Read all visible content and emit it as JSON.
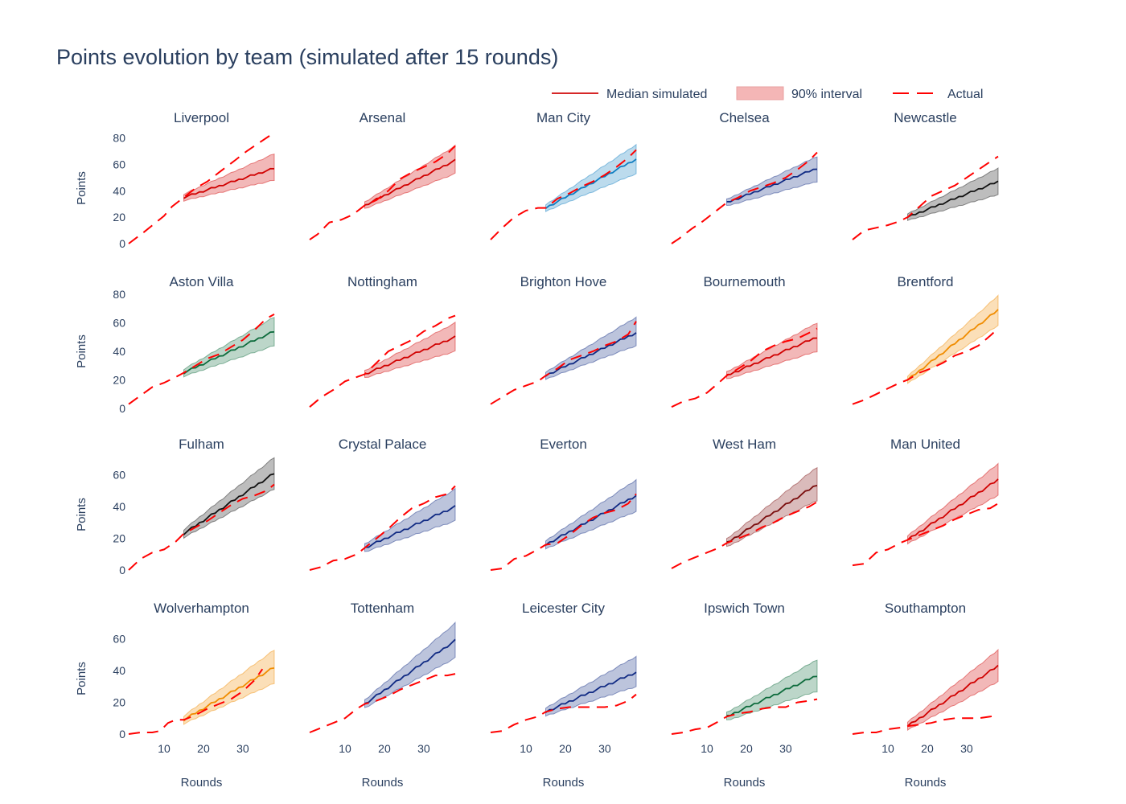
{
  "chart_data": {
    "type": "line",
    "title": "Points evolution by team (simulated after 15 rounds)",
    "xlabel": "Rounds",
    "ylabel": "Points",
    "xlim": [
      1,
      38
    ],
    "x_ticks": [
      10,
      20,
      30
    ],
    "ylim_rows": [
      [
        0,
        84
      ],
      [
        0,
        80
      ],
      [
        0,
        70
      ],
      [
        0,
        70
      ]
    ],
    "y_ticks_rows": [
      [
        0,
        20,
        40,
        60,
        80
      ],
      [
        0,
        20,
        40,
        60,
        80
      ],
      [
        0,
        20,
        40,
        60
      ],
      [
        0,
        20,
        40,
        60
      ]
    ],
    "simulation_start_round": 15,
    "legend": {
      "position": "top-right",
      "items": [
        {
          "label": "Median simulated",
          "style": "line",
          "color": "#d62728"
        },
        {
          "label": "90% interval",
          "style": "band",
          "color": "#f4b6b6"
        },
        {
          "label": "Actual",
          "style": "dash",
          "color": "#ff0000"
        }
      ]
    },
    "teams": [
      {
        "name": "Liverpool",
        "color": "#d00000",
        "actual_rounds": [
          1,
          5,
          10,
          12,
          15,
          18,
          21,
          24,
          28,
          31,
          34,
          38
        ],
        "actual_points": [
          0,
          9,
          21,
          28,
          35,
          42,
          47,
          54,
          63,
          70,
          76,
          84
        ],
        "median_end": 57,
        "lower_end": 48,
        "upper_end": 68
      },
      {
        "name": "Arsenal",
        "color": "#d00000",
        "actual_rounds": [
          1,
          3,
          6,
          9,
          12,
          15,
          18,
          21,
          24,
          27,
          30,
          33,
          36,
          38
        ],
        "actual_points": [
          3,
          7,
          16,
          18,
          22,
          29,
          33,
          40,
          49,
          54,
          58,
          62,
          68,
          74
        ],
        "median_end": 63,
        "lower_end": 53,
        "upper_end": 74
      },
      {
        "name": "Man City",
        "color": "#0e7cc0",
        "actual_rounds": [
          1,
          4,
          7,
          10,
          13,
          15,
          18,
          21,
          24,
          27,
          30,
          33,
          36,
          38
        ],
        "actual_points": [
          3,
          12,
          20,
          25,
          27,
          27,
          34,
          38,
          43,
          47,
          52,
          58,
          65,
          71
        ],
        "median_end": 64,
        "lower_end": 53,
        "upper_end": 75
      },
      {
        "name": "Chelsea",
        "color": "#102a83",
        "actual_rounds": [
          1,
          3,
          6,
          9,
          12,
          15,
          18,
          21,
          24,
          27,
          30,
          33,
          36,
          38
        ],
        "actual_points": [
          0,
          4,
          11,
          17,
          24,
          31,
          35,
          40,
          43,
          46,
          50,
          56,
          63,
          69
        ],
        "median_end": 57,
        "lower_end": 47,
        "upper_end": 66
      },
      {
        "name": "Newcastle",
        "color": "#111111",
        "actual_rounds": [
          1,
          4,
          7,
          10,
          13,
          15,
          18,
          21,
          24,
          27,
          30,
          33,
          36,
          38
        ],
        "actual_points": [
          3,
          10,
          12,
          14,
          17,
          20,
          28,
          36,
          40,
          44,
          50,
          56,
          62,
          66
        ],
        "median_end": 47,
        "lower_end": 37,
        "upper_end": 57
      },
      {
        "name": "Aston Villa",
        "color": "#0d6b3c",
        "actual_rounds": [
          1,
          4,
          7,
          10,
          13,
          15,
          18,
          21,
          24,
          27,
          30,
          33,
          36,
          38
        ],
        "actual_points": [
          3,
          9,
          15,
          18,
          22,
          25,
          30,
          35,
          38,
          43,
          48,
          55,
          63,
          66
        ],
        "median_end": 54,
        "lower_end": 44,
        "upper_end": 64
      },
      {
        "name": "Nottingham",
        "color": "#d00000",
        "actual_rounds": [
          1,
          4,
          7,
          10,
          13,
          15,
          18,
          21,
          24,
          27,
          30,
          33,
          36,
          38
        ],
        "actual_points": [
          1,
          8,
          13,
          19,
          22,
          24,
          32,
          40,
          44,
          48,
          54,
          58,
          63,
          65
        ],
        "median_end": 50,
        "lower_end": 40,
        "upper_end": 60
      },
      {
        "name": "Brighton Hove",
        "color": "#102a83",
        "actual_rounds": [
          1,
          4,
          7,
          10,
          13,
          15,
          18,
          21,
          24,
          27,
          30,
          33,
          36,
          38
        ],
        "actual_points": [
          3,
          8,
          13,
          16,
          19,
          23,
          28,
          34,
          37,
          40,
          44,
          47,
          52,
          61
        ],
        "median_end": 53,
        "lower_end": 44,
        "upper_end": 64
      },
      {
        "name": "Bournemouth",
        "color": "#d00000",
        "actual_rounds": [
          1,
          4,
          7,
          10,
          13,
          15,
          18,
          21,
          24,
          27,
          30,
          33,
          36,
          38
        ],
        "actual_points": [
          1,
          5,
          7,
          11,
          18,
          23,
          28,
          33,
          40,
          44,
          47,
          49,
          53,
          56
        ],
        "median_end": 50,
        "lower_end": 40,
        "upper_end": 60
      },
      {
        "name": "Brentford",
        "color": "#f08c00",
        "actual_rounds": [
          1,
          4,
          7,
          10,
          13,
          15,
          18,
          21,
          24,
          27,
          30,
          33,
          36,
          38
        ],
        "actual_points": [
          3,
          6,
          10,
          14,
          18,
          20,
          25,
          28,
          32,
          37,
          40,
          44,
          51,
          56
        ],
        "median_end": 69,
        "lower_end": 58,
        "upper_end": 79
      },
      {
        "name": "Fulham",
        "color": "#111111",
        "actual_rounds": [
          1,
          4,
          7,
          10,
          13,
          15,
          18,
          21,
          24,
          27,
          30,
          33,
          36,
          38
        ],
        "actual_points": [
          0,
          7,
          11,
          13,
          18,
          23,
          27,
          31,
          36,
          41,
          45,
          47,
          50,
          54
        ],
        "median_end": 61,
        "lower_end": 51,
        "upper_end": 71
      },
      {
        "name": "Crystal Palace",
        "color": "#102a83",
        "actual_rounds": [
          1,
          4,
          7,
          10,
          13,
          15,
          18,
          21,
          24,
          27,
          30,
          33,
          36,
          38
        ],
        "actual_points": [
          0,
          2,
          6,
          7,
          10,
          14,
          20,
          26,
          33,
          39,
          42,
          46,
          48,
          53
        ],
        "median_end": 40,
        "lower_end": 31,
        "upper_end": 51
      },
      {
        "name": "Everton",
        "color": "#102a83",
        "actual_rounds": [
          1,
          4,
          7,
          10,
          13,
          15,
          18,
          21,
          24,
          27,
          30,
          33,
          36,
          38
        ],
        "actual_points": [
          0,
          1,
          7,
          9,
          13,
          16,
          17,
          22,
          28,
          33,
          36,
          38,
          42,
          48
        ],
        "median_end": 47,
        "lower_end": 37,
        "upper_end": 57
      },
      {
        "name": "West Ham",
        "color": "#7a0c0c",
        "actual_rounds": [
          1,
          4,
          7,
          10,
          13,
          15,
          18,
          21,
          24,
          27,
          30,
          33,
          36,
          38
        ],
        "actual_points": [
          1,
          5,
          8,
          11,
          14,
          17,
          20,
          23,
          27,
          30,
          34,
          37,
          40,
          43
        ],
        "median_end": 54,
        "lower_end": 44,
        "upper_end": 65
      },
      {
        "name": "Man United",
        "color": "#d00000",
        "actual_rounds": [
          1,
          4,
          7,
          10,
          13,
          15,
          18,
          21,
          24,
          27,
          30,
          33,
          36,
          38
        ],
        "actual_points": [
          3,
          4,
          11,
          13,
          17,
          19,
          22,
          25,
          28,
          32,
          35,
          38,
          39,
          42
        ],
        "median_end": 57,
        "lower_end": 47,
        "upper_end": 67
      },
      {
        "name": "Wolverhampton",
        "color": "#f08c00",
        "actual_rounds": [
          1,
          4,
          7,
          9,
          11,
          13,
          15,
          18,
          21,
          24,
          27,
          30,
          33,
          35
        ],
        "actual_points": [
          0,
          1,
          1,
          2,
          7,
          9,
          9,
          12,
          16,
          19,
          22,
          27,
          34,
          41
        ],
        "median_end": 42,
        "lower_end": 32,
        "upper_end": 53
      },
      {
        "name": "Tottenham",
        "color": "#102a83",
        "actual_rounds": [
          1,
          4,
          7,
          10,
          13,
          15,
          18,
          21,
          24,
          27,
          30,
          33,
          36,
          38
        ],
        "actual_points": [
          1,
          4,
          7,
          10,
          16,
          19,
          21,
          24,
          28,
          31,
          34,
          37,
          37,
          38
        ],
        "median_end": 59,
        "lower_end": 48,
        "upper_end": 70
      },
      {
        "name": "Leicester City",
        "color": "#102a83",
        "actual_rounds": [
          1,
          4,
          7,
          10,
          13,
          15,
          18,
          21,
          24,
          27,
          30,
          33,
          36,
          38
        ],
        "actual_points": [
          1,
          2,
          6,
          9,
          11,
          14,
          16,
          17,
          17,
          17,
          17,
          18,
          21,
          25
        ],
        "median_end": 39,
        "lower_end": 30,
        "upper_end": 49
      },
      {
        "name": "Ipswich Town",
        "color": "#0d6b3c",
        "actual_rounds": [
          1,
          4,
          7,
          10,
          13,
          15,
          18,
          21,
          24,
          27,
          30,
          33,
          36,
          38
        ],
        "actual_points": [
          0,
          1,
          3,
          4,
          8,
          11,
          13,
          14,
          16,
          17,
          17,
          20,
          21,
          22
        ],
        "median_end": 37,
        "lower_end": 27,
        "upper_end": 47
      },
      {
        "name": "Southampton",
        "color": "#d00000",
        "actual_rounds": [
          1,
          4,
          7,
          10,
          13,
          15,
          18,
          21,
          24,
          27,
          30,
          33,
          36,
          38
        ],
        "actual_points": [
          0,
          1,
          1,
          3,
          4,
          5,
          6,
          7,
          9,
          10,
          10,
          10,
          11,
          12
        ],
        "median_end": 43,
        "lower_end": 33,
        "upper_end": 53
      }
    ]
  }
}
